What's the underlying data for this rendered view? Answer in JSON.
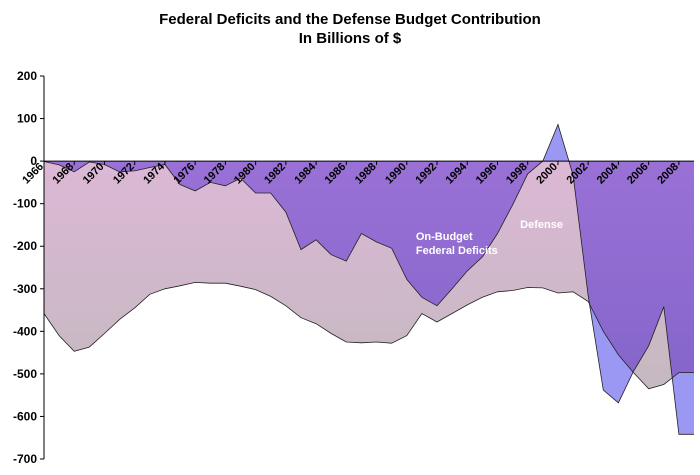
{
  "chart_data": {
    "type": "area",
    "title_line1": "Federal Deficits and the Defense Budget Contribution",
    "title_line2": "In Billions of $",
    "xlabel": "",
    "ylabel": "",
    "xlim": [
      1966,
      2009
    ],
    "ylim": [
      -700,
      200
    ],
    "y_ticks": [
      200,
      100,
      0,
      -100,
      -200,
      -300,
      -400,
      -500,
      -600,
      -700
    ],
    "x_ticks": [
      1966,
      1968,
      1970,
      1972,
      1974,
      1976,
      1978,
      1980,
      1982,
      1984,
      1986,
      1988,
      1990,
      1992,
      1994,
      1996,
      1998,
      2000,
      2002,
      2004,
      2006,
      2008
    ],
    "grid": false,
    "x": [
      1966,
      1967,
      1968,
      1969,
      1970,
      1971,
      1972,
      1973,
      1974,
      1975,
      1976,
      1977,
      1978,
      1979,
      1980,
      1981,
      1982,
      1983,
      1984,
      1985,
      1986,
      1987,
      1988,
      1989,
      1990,
      1991,
      1992,
      1993,
      1994,
      1995,
      1996,
      1997,
      1998,
      1999,
      2000,
      2001,
      2002,
      2003,
      2004,
      2005,
      2006,
      2007,
      2008,
      2009
    ],
    "series": [
      {
        "name": "On-Budget Federal Deficits",
        "color": "#8f6fd6",
        "values": [
          -1,
          -9,
          -25,
          -2,
          -8,
          -25,
          -23,
          -15,
          -8,
          -55,
          -70,
          -50,
          -58,
          -40,
          -75,
          -75,
          -120,
          -208,
          -185,
          -220,
          -235,
          -170,
          -190,
          -205,
          -278,
          -320,
          -340,
          -300,
          -258,
          -225,
          -170,
          -103,
          -30,
          0,
          86,
          -33,
          -317,
          -538,
          -568,
          -494,
          -434,
          -342,
          -642,
          -642
        ]
      },
      {
        "name": "Defense",
        "color": "#cdb0c8",
        "values": [
          -358,
          -410,
          -447,
          -437,
          -405,
          -372,
          -345,
          -313,
          -300,
          -293,
          -285,
          -287,
          -287,
          -294,
          -302,
          -318,
          -340,
          -368,
          -382,
          -405,
          -425,
          -427,
          -425,
          -428,
          -410,
          -358,
          -378,
          -358,
          -338,
          -320,
          -307,
          -304,
          -297,
          -298,
          -310,
          -307,
          -330,
          -400,
          -455,
          -497,
          -535,
          -525,
          -497,
          -497
        ]
      }
    ],
    "annotations": [
      {
        "text_line1": "On-Budget",
        "text_line2": "Federal Deficits",
        "x": 1990.6,
        "y": -185
      },
      {
        "text": "Defense",
        "x": 1997.5,
        "y": -157
      }
    ]
  }
}
